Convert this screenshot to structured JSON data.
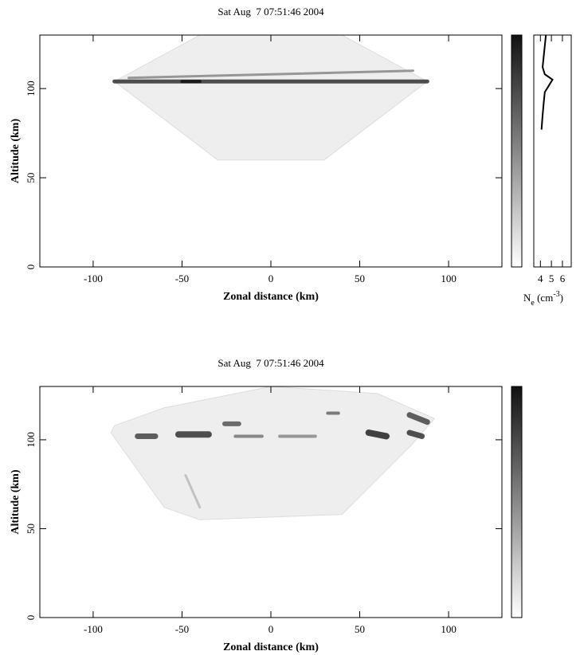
{
  "chart_data": [
    {
      "type": "image",
      "title": "Sat Aug  7 07:51:46 2004",
      "x_label": "Zonal distance (km)",
      "y_label": "Altitude (km)",
      "xlim": [
        -130,
        130
      ],
      "ylim": [
        0,
        130
      ],
      "xticks": [
        -100,
        -50,
        0,
        50,
        100
      ],
      "yticks": [
        0,
        50,
        100
      ]
    },
    {
      "type": "line",
      "x_label": [
        "N",
        "e",
        " (cm",
        "-3",
        ")"
      ],
      "xlim": [
        3.4,
        6.8
      ],
      "ylim": [
        0,
        130
      ],
      "xticks": [
        4,
        5,
        6
      ],
      "y": [
        77,
        85,
        92,
        98,
        102,
        105,
        108,
        112,
        118,
        124,
        130
      ],
      "values": [
        4.1,
        4.2,
        4.3,
        4.4,
        4.8,
        5.1,
        4.4,
        4.2,
        4.3,
        4.4,
        4.5
      ],
      "color": "#000000"
    },
    {
      "type": "image",
      "title": "Sat Aug  7 07:51:46 2004",
      "x_label": "Zonal distance (km)",
      "y_label": "Altitude (km)",
      "xlim": [
        -130,
        130
      ],
      "ylim": [
        0,
        130
      ],
      "xticks": [
        -100,
        -50,
        0,
        50,
        100
      ],
      "yticks": [
        0,
        50,
        100
      ]
    }
  ]
}
